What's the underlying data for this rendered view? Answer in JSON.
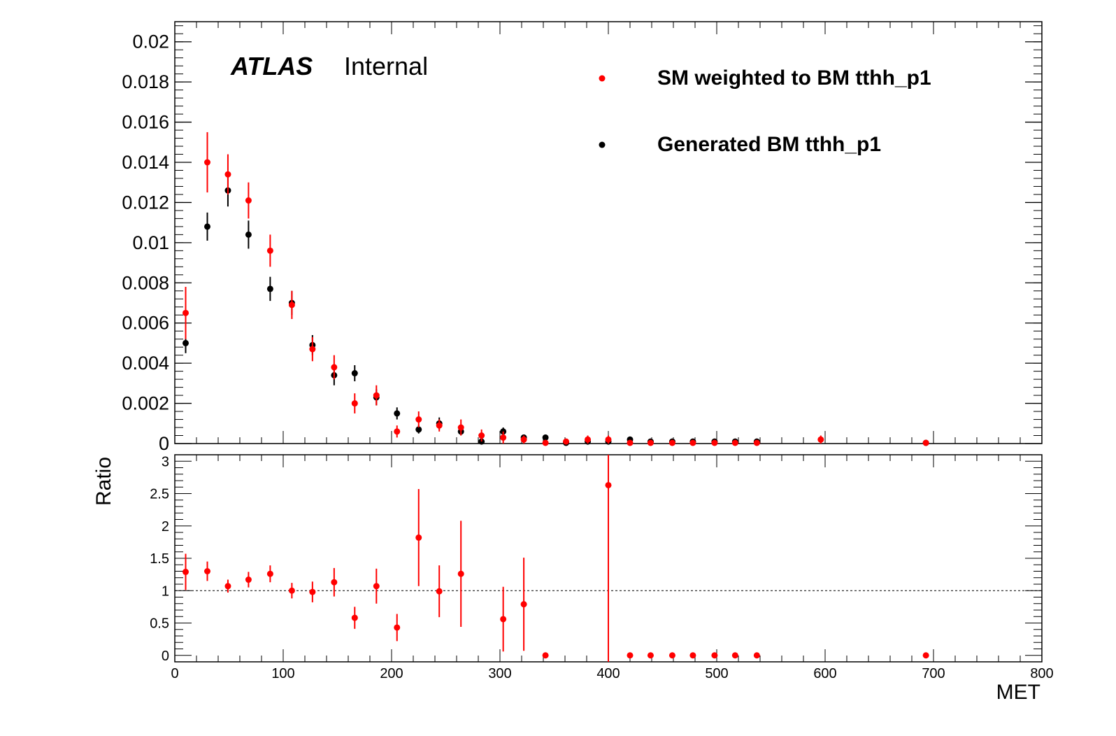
{
  "chart_data": [
    {
      "type": "scatter",
      "panel": "main",
      "xlabel": "",
      "ylabel": "",
      "xlim": [
        0,
        800
      ],
      "ylim": [
        0,
        0.021
      ],
      "y_ticks": [
        0,
        0.002,
        0.004,
        0.006,
        0.008,
        0.01,
        0.012,
        0.014,
        0.016,
        0.018,
        0.02
      ],
      "y_tick_labels": [
        "0",
        "0.002",
        "0.004",
        "0.006",
        "0.008",
        "0.01",
        "0.012",
        "0.014",
        "0.016",
        "0.018",
        "0.02"
      ],
      "grid": false,
      "legend_position": "top-right",
      "annotation": {
        "atlas": "ATLAS",
        "status": "Internal"
      },
      "series": [
        {
          "name": "SM weighted to BM tthh_p1",
          "color": "#ff0000",
          "x": [
            10,
            30,
            49,
            68,
            88,
            108,
            127,
            147,
            166,
            186,
            205,
            225,
            244,
            264,
            283,
            303,
            322,
            342,
            361,
            381,
            400,
            420,
            439,
            459,
            478,
            498,
            517,
            537,
            596,
            693
          ],
          "y": [
            0.0065,
            0.014,
            0.0134,
            0.0121,
            0.0096,
            0.0069,
            0.0047,
            0.0038,
            0.002,
            0.0024,
            0.0006,
            0.0012,
            0.0009,
            0.0008,
            0.0004,
            0.0003,
            0.0002,
            0.0,
            0.0001,
            0.0002,
            0.0002,
            0.0,
            0.0,
            0.0,
            0.0,
            0.0,
            0.0,
            0.0,
            0.0002,
            0.0
          ],
          "err": [
            0.0013,
            0.0015,
            0.001,
            0.0009,
            0.0008,
            0.0007,
            0.0006,
            0.0006,
            0.0005,
            0.0005,
            0.0003,
            0.0004,
            0.0003,
            0.0004,
            0.0003,
            0.0003,
            0.0002,
            0.0,
            0.0001,
            0.0002,
            0.0002,
            0.0,
            0.0,
            0.0,
            0.0,
            0.0,
            0.0,
            0.0,
            0.0002,
            0.0
          ]
        },
        {
          "name": "Generated BM tthh_p1",
          "color": "#000000",
          "x": [
            10,
            30,
            49,
            68,
            88,
            108,
            127,
            147,
            166,
            186,
            205,
            225,
            244,
            264,
            283,
            303,
            322,
            342,
            361,
            381,
            400,
            420,
            439,
            459,
            478,
            498,
            517,
            537,
            693
          ],
          "y": [
            0.005,
            0.0108,
            0.0126,
            0.0104,
            0.0077,
            0.007,
            0.0049,
            0.0034,
            0.0035,
            0.0023,
            0.0015,
            0.0007,
            0.001,
            0.0006,
            0.0001,
            0.0006,
            0.0003,
            0.0003,
            0.0,
            0.0001,
            0.0001,
            0.0002,
            0.0001,
            0.0001,
            0.0001,
            0.0001,
            0.0001,
            0.0001,
            0.0
          ],
          "err": [
            0.0005,
            0.0007,
            0.0008,
            0.0007,
            0.0006,
            0.0006,
            0.0005,
            0.0005,
            0.0004,
            0.0004,
            0.0003,
            0.0002,
            0.0003,
            0.0002,
            0.0001,
            0.0002,
            0.0001,
            0.0001,
            0.0,
            0.0,
            0.0,
            0.0001,
            0.0,
            0.0,
            0.0,
            0.0,
            0.0,
            0.0,
            0.0
          ]
        }
      ]
    },
    {
      "type": "scatter",
      "panel": "ratio",
      "xlabel": "MET",
      "ylabel": "Ratio",
      "xlim": [
        0,
        800
      ],
      "ylim": [
        -0.1,
        3.1
      ],
      "x_ticks": [
        0,
        100,
        200,
        300,
        400,
        500,
        600,
        700,
        800
      ],
      "x_tick_labels": [
        "0",
        "100",
        "200",
        "300",
        "400",
        "500",
        "600",
        "700",
        "800"
      ],
      "y_ticks": [
        0,
        0.5,
        1,
        1.5,
        2,
        2.5,
        3
      ],
      "y_tick_labels": [
        "0",
        "0.5",
        "1",
        "1.5",
        "2",
        "2.5",
        "3"
      ],
      "reference_line": 1,
      "grid": false,
      "series": [
        {
          "color": "#ff0000",
          "x": [
            10,
            30,
            49,
            68,
            88,
            108,
            127,
            147,
            166,
            186,
            205,
            225,
            244,
            264,
            303,
            322,
            342,
            400,
            420,
            439,
            459,
            478,
            498,
            517,
            537,
            693
          ],
          "y": [
            1.29,
            1.3,
            1.07,
            1.17,
            1.26,
            1.0,
            0.98,
            1.13,
            0.58,
            1.07,
            0.43,
            1.82,
            0.99,
            1.26,
            0.56,
            0.79,
            0.0,
            2.63,
            0.0,
            0.0,
            0.0,
            0.0,
            0.0,
            0.0,
            0.0,
            0.0
          ],
          "err": [
            0.28,
            0.15,
            0.1,
            0.12,
            0.13,
            0.12,
            0.16,
            0.22,
            0.17,
            0.27,
            0.21,
            0.75,
            0.4,
            0.82,
            0.5,
            0.72,
            0.0,
            3.0,
            0.0,
            0.0,
            0.0,
            0.0,
            0.0,
            0.0,
            0.0,
            0.0
          ]
        }
      ]
    }
  ]
}
